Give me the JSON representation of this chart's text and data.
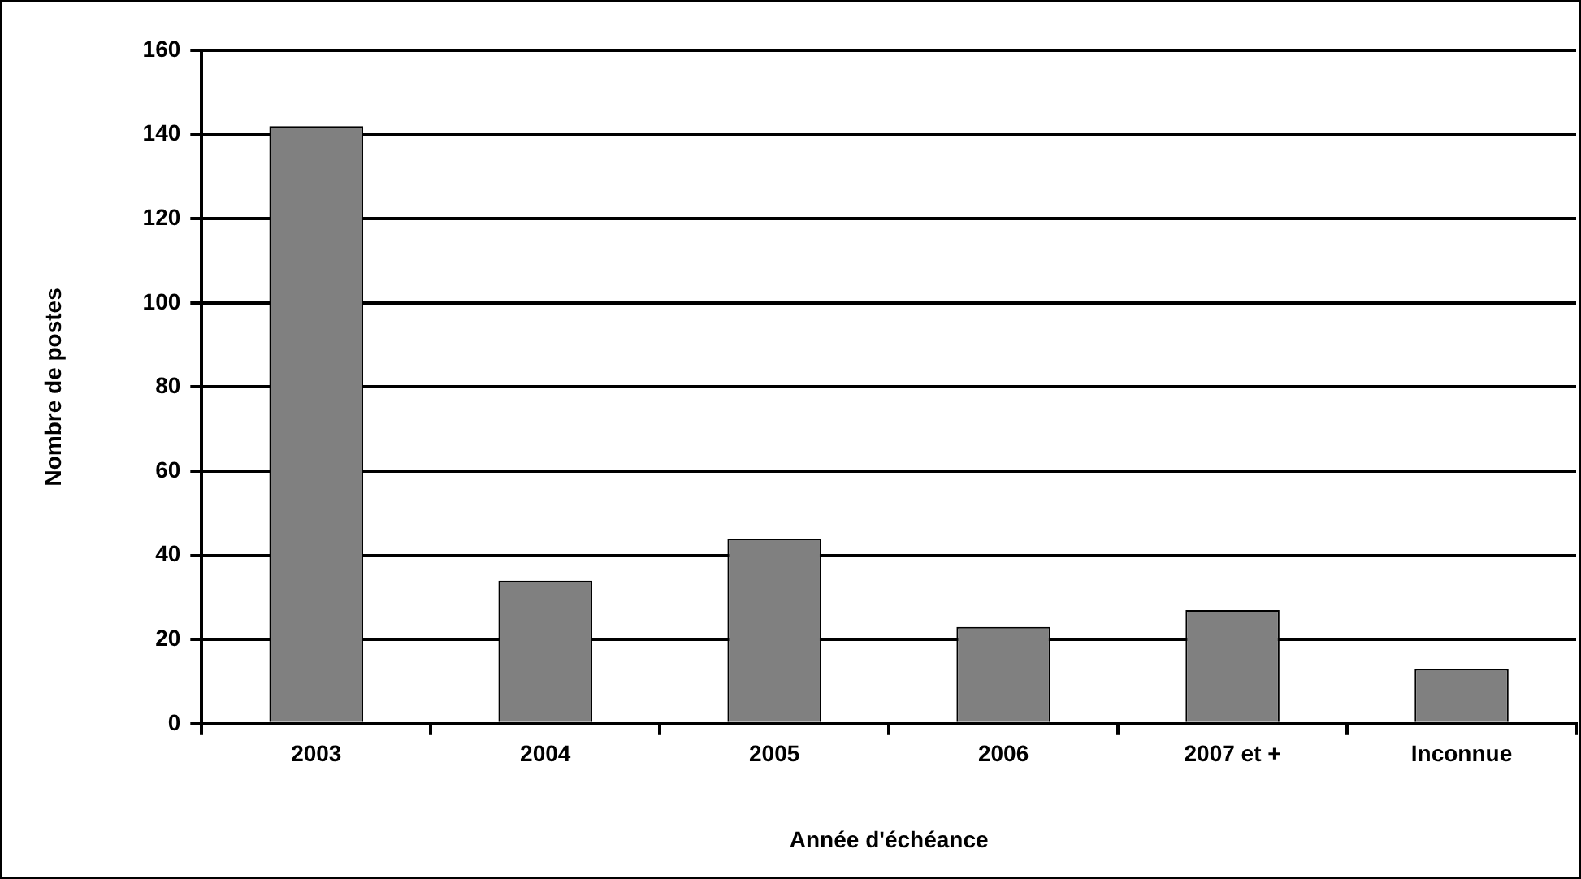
{
  "chart_data": {
    "type": "bar",
    "xlabel": "Année d'échéance",
    "ylabel": "Nombre de postes",
    "categories": [
      "2003",
      "2004",
      "2005",
      "2006",
      "2007 et +",
      "Inconnue"
    ],
    "values": [
      142,
      34,
      44,
      23,
      27,
      13
    ],
    "color": "#808080",
    "ylim": [
      0,
      160
    ],
    "yticks": [
      0,
      20,
      40,
      60,
      80,
      100,
      120,
      140,
      160
    ],
    "grid": "y",
    "legend": false
  }
}
